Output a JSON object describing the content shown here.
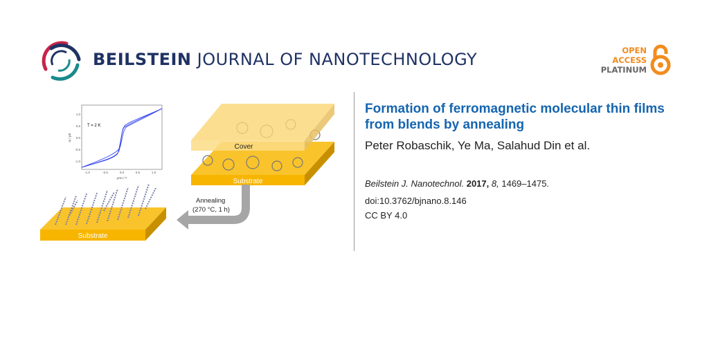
{
  "header": {
    "journal_bold": "BEILSTEIN",
    "journal_rest": " JOURNAL OF NANOTECHNOLOGY",
    "open_access": [
      "OPEN",
      "ACCESS",
      "PLATINUM"
    ],
    "colors": {
      "navy": "#1f3264",
      "orange": "#f28c1e",
      "gray": "#666666"
    }
  },
  "article": {
    "title": "Formation of ferromagnetic molecular thin films from blends by annealing",
    "authors": "Peter Robaschik, Ye Ma, Salahud Din et al.",
    "journal_abbrev": "Beilstein J. Nanotechnol.",
    "year": "2017,",
    "volume": "8,",
    "pages": "1469–1475.",
    "doi": "doi:10.3762/bjnano.8.146",
    "license": "CC BY 4.0",
    "title_color": "#1565b0"
  },
  "graphic": {
    "plot": {
      "annotation": "T = 2 K",
      "xlabel": "μ0H / T",
      "ylabel": "m / μB",
      "xticks": [
        "-1.0",
        "-0.5",
        "0.0",
        "0.5",
        "1.0"
      ],
      "yticks": [
        "1.0",
        "0.5",
        "0.0",
        "-0.5",
        "-1.0"
      ]
    },
    "cover_label": "Cover",
    "substrate_label": "Substrate",
    "substrate_label_bottom": "Substrate",
    "arrow_line1": "Annealing",
    "arrow_line2": "(270 °C, 1 h)"
  }
}
